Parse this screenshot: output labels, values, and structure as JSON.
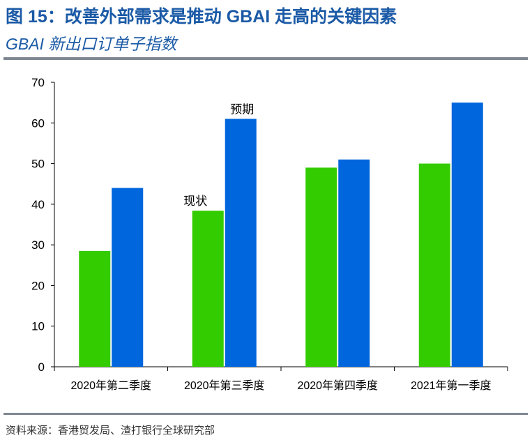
{
  "header": {
    "title": "图 15：改善外部需求是推动 GBAI 走高的关键因素",
    "subtitle": "GBAI 新出口订单子指数"
  },
  "footer": {
    "source": "资料来源：香港贸发局、渣打银行全球研究部"
  },
  "colors": {
    "title": "#1b5aa6",
    "current": "#33cc00",
    "expected": "#0066dd"
  },
  "chart_data": {
    "type": "bar",
    "categories": [
      "2020年第二季度",
      "2020年第三季度",
      "2020年第四季度",
      "2021年第一季度"
    ],
    "series": [
      {
        "name": "现状",
        "values": [
          28.5,
          38.4,
          49,
          50
        ]
      },
      {
        "name": "预期",
        "values": [
          44,
          61,
          51,
          65
        ]
      }
    ],
    "ylim": [
      0,
      70
    ],
    "yticks": [
      0,
      10,
      20,
      30,
      40,
      50,
      60,
      70
    ],
    "grid": false,
    "legend": "inline labels above second-category bars"
  }
}
